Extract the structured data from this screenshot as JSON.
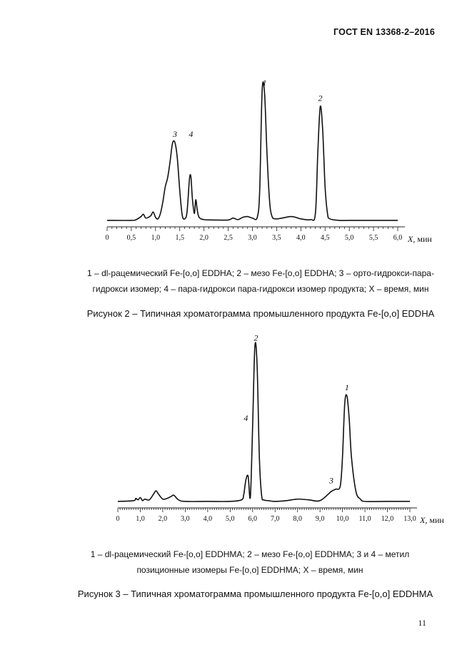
{
  "header": {
    "standard": "ГОСТ EN 13368-2–2016"
  },
  "page_number": "11",
  "figures": [
    {
      "legend_line1": "1 – dl-рацемический Fe-[o,o] EDDHA; 2 – мезо Fe-[o,o] EDDHA; 3 – орто-гидрокси-пара-",
      "legend_line2": "гидрокси изомер; 4 – пара-гидрокси пара-гидрокси изомер продукта; X – время, мин",
      "caption": "Рисунок 2 – Типичная хроматограмма промышленного продукта Fe-[o,o] EDDHA"
    },
    {
      "legend_line1": "1 – dl-рацемический Fe-[o,o] EDDHMA; 2 – мезо Fe-[o,o] EDDHMA; 3 и 4 – метил",
      "legend_line2": "позиционные изомеры Fe-[o,o] EDDHMA; X – время, мин",
      "caption": "Рисунок 3 – Типичная хроматограмма промышленного продукта Fe-[o,o] EDDHMA"
    }
  ],
  "chart_data": [
    {
      "type": "line",
      "xlabel": "X, мин",
      "xlim": [
        0,
        6.0
      ],
      "x_ticks": [
        "0",
        "0,5",
        "1,0",
        "1,5",
        "2,0",
        "2,5",
        "3,0",
        "3,5",
        "4,0",
        "4,5",
        "5,0",
        "5,5",
        "6,0"
      ],
      "peak_labels": [
        "1",
        "2",
        "3",
        "4"
      ],
      "series": [
        {
          "x": [
            0,
            0.5,
            0.6,
            0.7,
            0.75,
            0.8,
            0.9,
            0.95,
            1.0,
            1.05,
            1.1,
            1.15,
            1.2,
            1.25,
            1.3,
            1.35,
            1.4,
            1.45,
            1.5,
            1.55,
            1.6,
            1.65,
            1.7,
            1.73,
            1.76,
            1.8,
            1.83,
            1.86,
            1.9,
            2.0,
            2.2,
            2.5,
            2.6,
            2.7,
            2.8,
            2.9,
            3.0,
            3.1,
            3.15,
            3.2,
            3.25,
            3.3,
            3.35,
            3.4,
            3.5,
            3.8,
            4.0,
            4.2,
            4.3,
            4.35,
            4.4,
            4.45,
            4.5,
            4.55,
            4.6,
            4.8,
            5.0,
            6.0
          ],
          "y": [
            1,
            1,
            2,
            6,
            9,
            4,
            7,
            12,
            5,
            3,
            10,
            25,
            45,
            57,
            78,
            102,
            103,
            82,
            40,
            8,
            3,
            12,
            55,
            58,
            30,
            10,
            28,
            15,
            5,
            2,
            1.5,
            1.5,
            4,
            2,
            5,
            6,
            4,
            5,
            40,
            170,
            168,
            90,
            30,
            7,
            3,
            6,
            3,
            2,
            10,
            90,
            150,
            120,
            45,
            10,
            3,
            1,
            1,
            1
          ]
        }
      ]
    },
    {
      "type": "line",
      "xlabel": "X, мин",
      "xlim": [
        0,
        13.0
      ],
      "x_ticks": [
        "0",
        "1,0",
        "2,0",
        "3,0",
        "4,0",
        "5,0",
        "6,0",
        "7,0",
        "8,0",
        "9,0",
        "10,0",
        "11,0",
        "12,0",
        "13,0"
      ],
      "peak_labels": [
        "1",
        "2",
        "3",
        "4"
      ],
      "series": [
        {
          "x": [
            0,
            0.7,
            0.8,
            0.9,
            1.0,
            1.1,
            1.2,
            1.4,
            1.6,
            1.7,
            1.8,
            2.0,
            2.2,
            2.4,
            2.5,
            2.7,
            3.0,
            4.0,
            5.0,
            5.5,
            5.6,
            5.7,
            5.8,
            5.9,
            6.0,
            6.1,
            6.2,
            6.3,
            6.4,
            6.5,
            6.7,
            7.0,
            7.5,
            8.0,
            8.5,
            9.0,
            9.5,
            9.7,
            9.9,
            10.0,
            10.1,
            10.2,
            10.3,
            10.4,
            10.6,
            10.8,
            11.0,
            12.0,
            13.0
          ],
          "y": [
            2,
            3,
            6,
            4,
            7,
            3,
            5,
            4,
            12,
            16,
            12,
            5,
            6,
            9,
            10,
            4,
            2,
            2,
            2,
            4,
            10,
            30,
            35,
            8,
            100,
            205,
            180,
            60,
            10,
            4,
            3,
            2,
            3,
            5,
            4,
            3,
            15,
            18,
            22,
            60,
            130,
            140,
            110,
            60,
            15,
            5,
            2,
            2,
            2
          ]
        }
      ]
    }
  ]
}
